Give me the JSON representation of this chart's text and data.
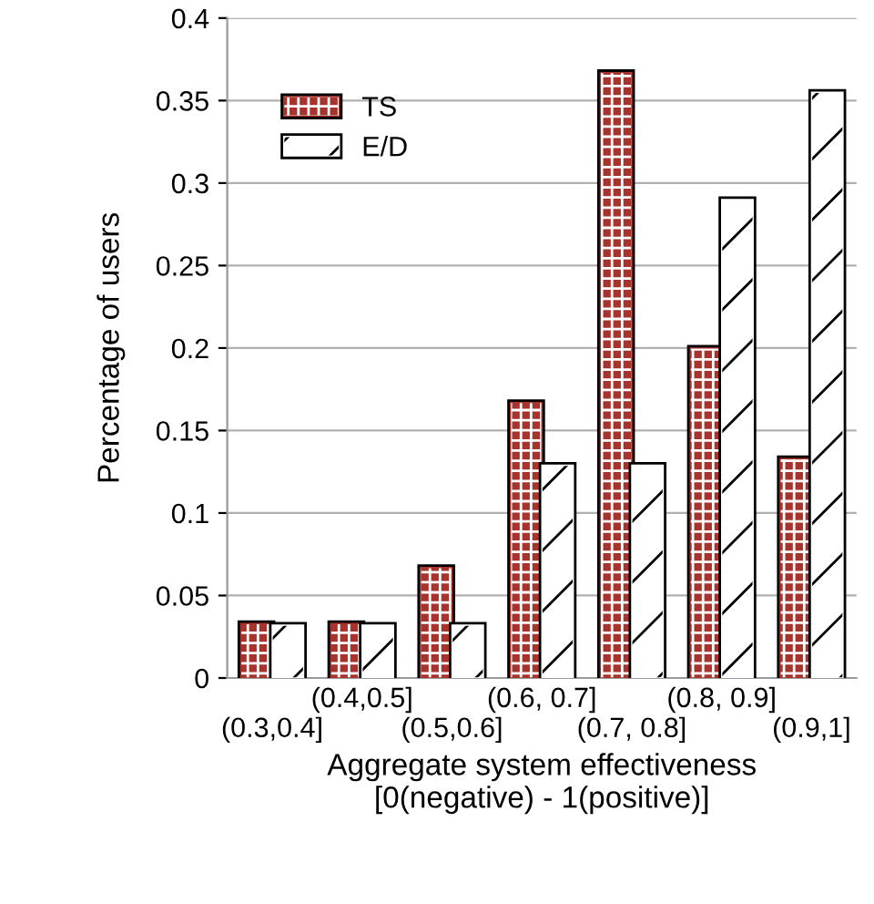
{
  "chart_data": {
    "type": "bar",
    "xlabel": "Aggregate system effectiveness\n[0(negative) - 1(positive)]",
    "ylabel": "Percentage of users",
    "categories": [
      "(0.3,0.4]",
      "(0.4,0.5]",
      "(0.5,0.6]",
      "(0.6, 0.7]",
      "(0.7, 0.8]",
      "(0.8, 0.9]",
      "(0.9,1]"
    ],
    "series": [
      {
        "name": "TS",
        "color": "#a8332c",
        "values": [
          0.033,
          0.033,
          0.067,
          0.167,
          0.367,
          0.2,
          0.133
        ]
      },
      {
        "name": "E/D",
        "color": "#ffffff",
        "values": [
          0.032,
          0.032,
          0.032,
          0.129,
          0.129,
          0.29,
          0.355
        ]
      }
    ],
    "ylim": [
      0,
      0.4
    ],
    "yticks": [
      0,
      0.05,
      0.1,
      0.15,
      0.2,
      0.25,
      0.3,
      0.35,
      0.4
    ],
    "grid": "y",
    "legend": "top left"
  }
}
